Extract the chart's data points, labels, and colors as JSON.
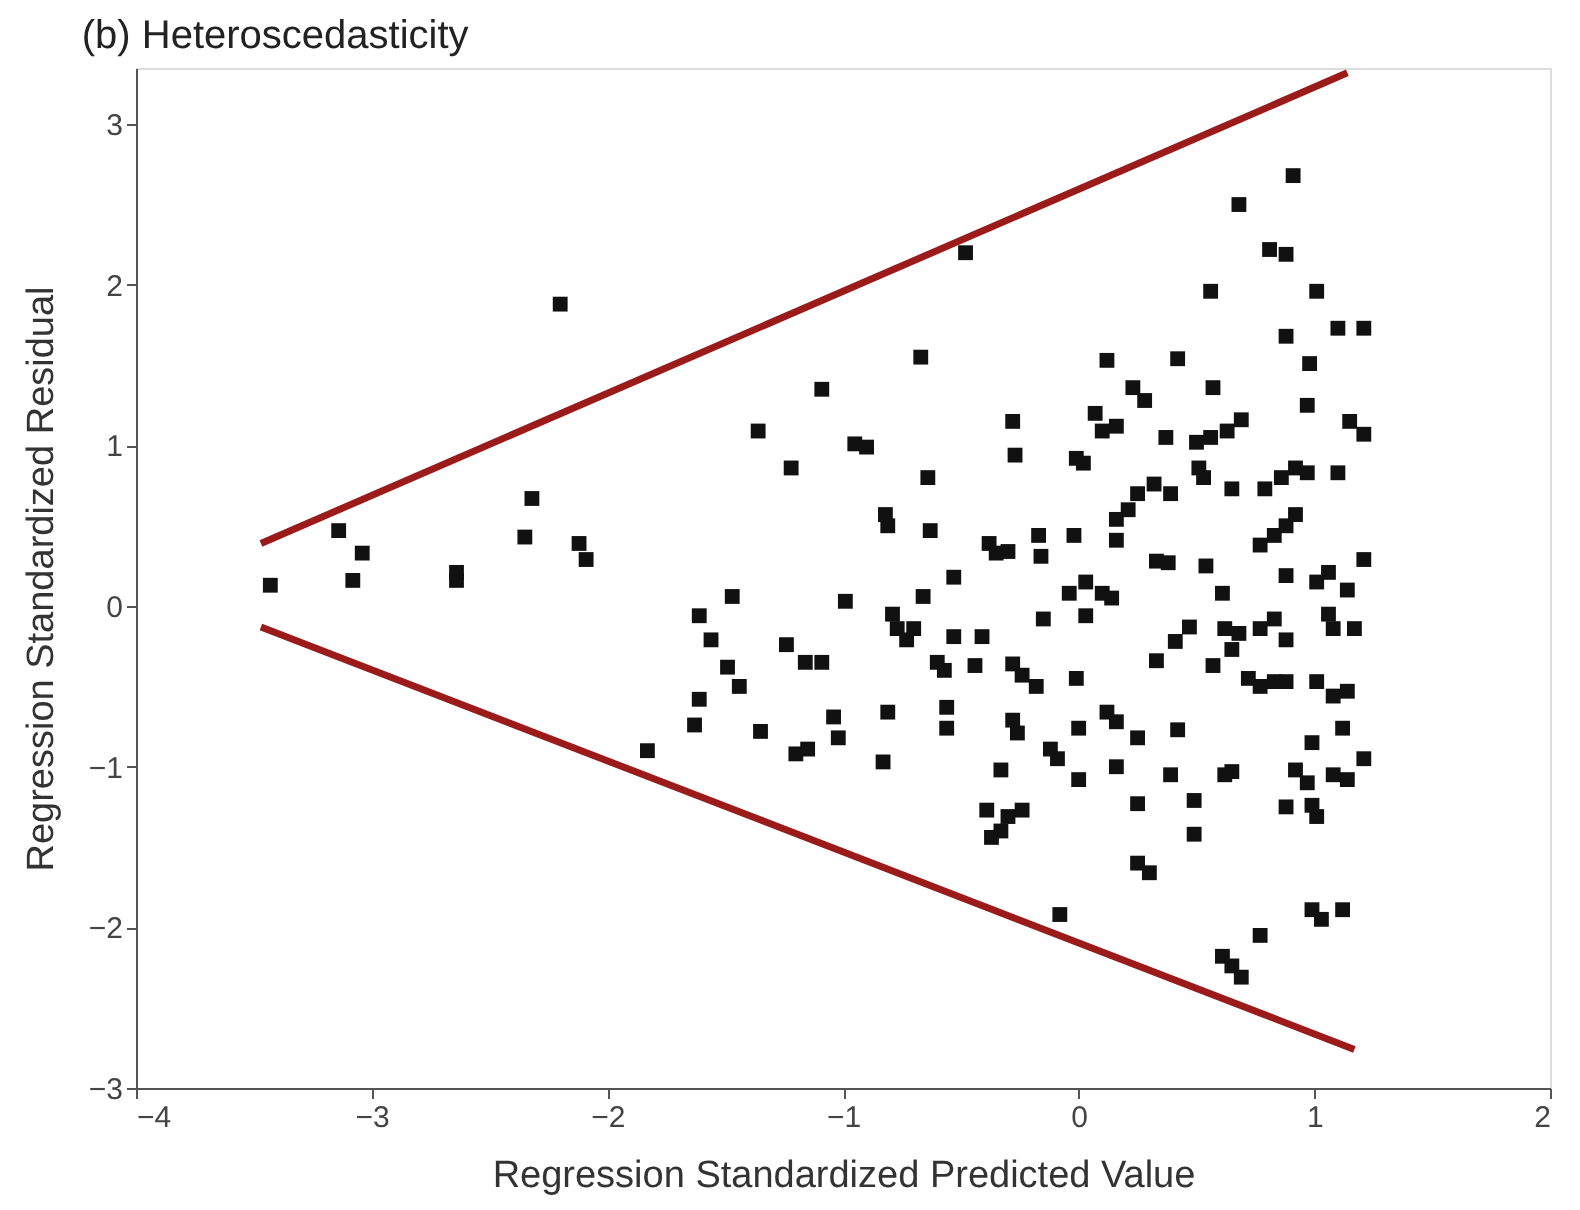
{
  "chart_data": {
    "type": "scatter",
    "title": "(b) Heteroscedasticity",
    "xlabel": "Regression Standardized Predicted Value",
    "ylabel": "Regression Standardized Residual",
    "xlim": [
      -4,
      2
    ],
    "ylim": [
      -3,
      3.35
    ],
    "xticks": [
      -4,
      -3,
      -2,
      -1,
      0,
      1,
      2
    ],
    "yticks": [
      -3,
      -2,
      -1,
      0,
      1,
      2,
      3
    ],
    "grid": false,
    "series": [
      {
        "color": "#111111",
        "marker": "square",
        "x": [
          -3.43,
          -3.14,
          -3.04,
          -3.08,
          -2.64,
          -2.64,
          -2.32,
          -2.35,
          -2.12,
          -2.09,
          -2.2,
          -1.83,
          -1.61,
          -1.47,
          -1.56,
          -1.49,
          -1.44,
          -1.61,
          -1.63,
          -1.36,
          -1.22,
          -1.35,
          -1.24,
          -1.16,
          -1.09,
          -1.2,
          -1.15,
          -1.09,
          -1.04,
          -1.02,
          -0.99,
          -0.95,
          -0.9,
          -0.82,
          -0.81,
          -0.79,
          -0.77,
          -0.73,
          -0.7,
          -0.81,
          -0.83,
          -0.67,
          -0.64,
          -0.63,
          -0.66,
          -0.6,
          -0.57,
          -0.56,
          -0.56,
          -0.48,
          -0.53,
          -0.53,
          -0.44,
          -0.41,
          -0.38,
          -0.35,
          -0.3,
          -0.28,
          -0.27,
          -0.28,
          -0.24,
          -0.18,
          -0.28,
          -0.26,
          -0.33,
          -0.39,
          -0.37,
          -0.3,
          -0.24,
          -0.33,
          -0.17,
          -0.16,
          -0.15,
          -0.12,
          -0.09,
          -0.08,
          -0.01,
          0.02,
          -0.02,
          -0.01,
          0,
          0,
          -0.04,
          0.03,
          0.1,
          0.14,
          0.03,
          0.07,
          0.12,
          0.1,
          0.16,
          0.12,
          0.16,
          0.16,
          0.16,
          0.21,
          0.25,
          0.16,
          0.23,
          0.28,
          0.25,
          0.25,
          0.3,
          0.25,
          0.33,
          0.38,
          0.32,
          0.39,
          0.37,
          0.42,
          0.39,
          0.33,
          0.41,
          0.47,
          0.42,
          0.49,
          0.49,
          0.51,
          0.53,
          0.5,
          0.56,
          0.57,
          0.56,
          0.54,
          0.61,
          0.57,
          0.62,
          0.68,
          0.65,
          0.63,
          0.69,
          0.65,
          0.65,
          0.62,
          0.61,
          0.65,
          0.69,
          0.68,
          0.77,
          0.77,
          0.72,
          0.77,
          0.77,
          0.83,
          0.88,
          0.92,
          0.79,
          0.86,
          0.92,
          0.97,
          0.83,
          0.88,
          0.88,
          0.83,
          0.88,
          0.81,
          0.88,
          0.88,
          0.91,
          0.98,
          0.97,
          0.88,
          0.92,
          0.97,
          0.99,
          1.01,
          1.01,
          1.01,
          1.06,
          1.01,
          1.08,
          0.99,
          1.06,
          1.08,
          0.99,
          1.03,
          1.12,
          1.1,
          1.1,
          1.08,
          1.12,
          1.14,
          1.17,
          1.14,
          1.21,
          1.15,
          1.21,
          1.21,
          1.21,
          1.14
        ],
        "values": [
          0.13,
          0.47,
          0.33,
          0.16,
          0.21,
          0.16,
          0.67,
          0.43,
          0.39,
          0.29,
          1.88,
          -0.9,
          -0.06,
          0.06,
          -0.21,
          -0.38,
          -0.5,
          -0.58,
          -0.74,
          1.09,
          0.86,
          -0.78,
          -0.24,
          -0.35,
          -0.35,
          -0.92,
          -0.89,
          1.35,
          -0.69,
          -0.82,
          0.03,
          1.01,
          0.99,
          0.57,
          0.5,
          -0.05,
          -0.14,
          -0.21,
          -0.14,
          -0.66,
          -0.97,
          1.55,
          0.8,
          0.47,
          0.06,
          -0.35,
          -0.4,
          -0.63,
          -0.76,
          2.2,
          0.18,
          -0.19,
          -0.37,
          -0.19,
          0.39,
          0.33,
          0.34,
          1.15,
          0.94,
          -0.36,
          -0.43,
          -0.5,
          -0.71,
          -0.79,
          -1.02,
          -1.27,
          -1.44,
          -1.31,
          -1.27,
          -1.4,
          0.44,
          0.31,
          -0.08,
          -0.89,
          -0.95,
          -1.92,
          0.92,
          0.89,
          0.44,
          -0.45,
          -0.76,
          -1.08,
          0.08,
          0.15,
          0.08,
          0.05,
          -0.06,
          1.2,
          1.53,
          1.09,
          1.12,
          -0.66,
          -0.72,
          -1.0,
          0.54,
          0.6,
          0.7,
          0.41,
          1.36,
          1.28,
          -1.23,
          -1.6,
          -1.66,
          -0.82,
          0.28,
          0.27,
          0.76,
          0.7,
          1.05,
          1.54,
          -1.05,
          -0.34,
          -0.22,
          -0.13,
          -0.77,
          -1.21,
          -1.42,
          0.86,
          0.8,
          1.02,
          1.05,
          1.36,
          1.96,
          0.25,
          0.08,
          -0.37,
          -0.14,
          -0.17,
          -0.27,
          1.09,
          1.16,
          0.73,
          -1.03,
          -1.05,
          -2.18,
          -2.24,
          -2.31,
          2.5,
          -2.05,
          -0.14,
          -0.45,
          -0.5,
          0.38,
          0.44,
          0.5,
          0.57,
          0.73,
          0.8,
          0.86,
          0.83,
          -0.08,
          -0.21,
          0.19,
          -0.47,
          -0.47,
          2.22,
          2.19,
          1.68,
          2.68,
          1.51,
          1.25,
          -1.25,
          -1.02,
          -1.1,
          -1.24,
          -1.31,
          1.96,
          0.15,
          0.21,
          -0.47,
          -0.56,
          -0.85,
          -0.05,
          -0.14,
          -1.89,
          -1.95,
          -1.89,
          1.73,
          0.83,
          -1.05,
          -0.76,
          0.1,
          -0.14,
          -0.53,
          1.73,
          1.15,
          1.07,
          0.29,
          -0.95,
          -1.08
        ]
      },
      {
        "type": "line",
        "marker": "none",
        "color": "#9b1b1b",
        "x": [
          -3.47,
          1.14
        ],
        "values": [
          0.39,
          3.32
        ]
      },
      {
        "type": "line",
        "marker": "none",
        "color": "#9b1b1b",
        "x": [
          -3.47,
          1.17
        ],
        "values": [
          -0.13,
          -2.76
        ]
      }
    ]
  }
}
